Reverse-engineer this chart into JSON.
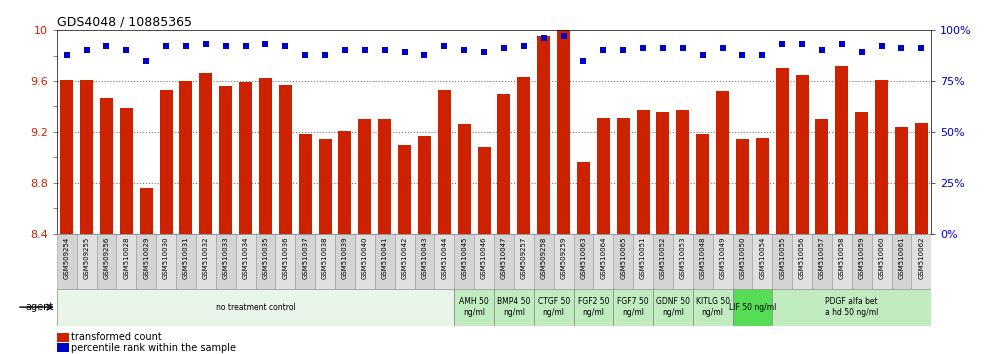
{
  "title": "GDS4048 / 10885365",
  "ylim_left": [
    8.4,
    10.0
  ],
  "ylim_right": [
    0,
    100
  ],
  "bar_color": "#cc2200",
  "dot_color": "#0000cc",
  "samples": [
    "GSM509254",
    "GSM509255",
    "GSM509256",
    "GSM510028",
    "GSM510029",
    "GSM510030",
    "GSM510031",
    "GSM510032",
    "GSM510033",
    "GSM510034",
    "GSM510035",
    "GSM510036",
    "GSM510037",
    "GSM510038",
    "GSM510039",
    "GSM510040",
    "GSM510041",
    "GSM510042",
    "GSM510043",
    "GSM510044",
    "GSM510045",
    "GSM510046",
    "GSM510047",
    "GSM509257",
    "GSM509258",
    "GSM509259",
    "GSM510063",
    "GSM510064",
    "GSM510065",
    "GSM510051",
    "GSM510052",
    "GSM510053",
    "GSM510048",
    "GSM510049",
    "GSM510050",
    "GSM510054",
    "GSM510055",
    "GSM510056",
    "GSM510057",
    "GSM510058",
    "GSM510059",
    "GSM510060",
    "GSM510061",
    "GSM510062"
  ],
  "bar_values": [
    9.61,
    9.61,
    9.47,
    9.39,
    8.76,
    9.53,
    9.6,
    9.66,
    9.56,
    9.59,
    9.62,
    9.57,
    9.18,
    9.14,
    9.21,
    9.3,
    9.3,
    9.1,
    9.17,
    9.53,
    9.26,
    9.08,
    9.5,
    9.63,
    9.95,
    10.03,
    8.96,
    9.31,
    9.31,
    9.37,
    9.36,
    9.37,
    9.18,
    9.52,
    9.14,
    9.15,
    9.7,
    9.65,
    9.3,
    9.72,
    9.36,
    9.61,
    9.24,
    9.27
  ],
  "dot_values": [
    88,
    90,
    92,
    90,
    85,
    92,
    92,
    93,
    92,
    92,
    93,
    92,
    88,
    88,
    90,
    90,
    90,
    89,
    88,
    92,
    90,
    89,
    91,
    92,
    96,
    97,
    85,
    90,
    90,
    91,
    91,
    91,
    88,
    91,
    88,
    88,
    93,
    93,
    90,
    93,
    89,
    92,
    91,
    91
  ],
  "yticks_left": [
    8.4,
    8.6,
    8.8,
    9.0,
    9.2,
    9.4,
    9.6,
    9.8,
    10.0
  ],
  "ytick_labels_left": [
    "8.4",
    "",
    "8.8",
    "",
    "9.2",
    "",
    "9.6",
    "",
    "10"
  ],
  "yticks_right": [
    0,
    25,
    50,
    75,
    100
  ],
  "ytick_labels_right": [
    "0%",
    "25%",
    "50%",
    "75%",
    "100%"
  ],
  "grid_vals": [
    9.6,
    9.2,
    8.8
  ],
  "treatment_groups": [
    {
      "label": "no treatment control",
      "start": 0,
      "end": 20,
      "color": "#e8f5e8"
    },
    {
      "label": "AMH 50\nng/ml",
      "start": 20,
      "end": 22,
      "color": "#c0ecc0"
    },
    {
      "label": "BMP4 50\nng/ml",
      "start": 22,
      "end": 24,
      "color": "#c0ecc0"
    },
    {
      "label": "CTGF 50\nng/ml",
      "start": 24,
      "end": 26,
      "color": "#c0ecc0"
    },
    {
      "label": "FGF2 50\nng/ml",
      "start": 26,
      "end": 28,
      "color": "#c0ecc0"
    },
    {
      "label": "FGF7 50\nng/ml",
      "start": 28,
      "end": 30,
      "color": "#c0ecc0"
    },
    {
      "label": "GDNF 50\nng/ml",
      "start": 30,
      "end": 32,
      "color": "#c0ecc0"
    },
    {
      "label": "KITLG 50\nng/ml",
      "start": 32,
      "end": 34,
      "color": "#c0ecc0"
    },
    {
      "label": "LIF 50 ng/ml",
      "start": 34,
      "end": 36,
      "color": "#55dd55"
    },
    {
      "label": "PDGF alfa bet\na hd 50 ng/ml",
      "start": 36,
      "end": 44,
      "color": "#c0ecc0"
    }
  ],
  "tick_label_color_left": "#cc2200",
  "tick_label_color_right": "#0000cc",
  "grid_color": "#777777"
}
